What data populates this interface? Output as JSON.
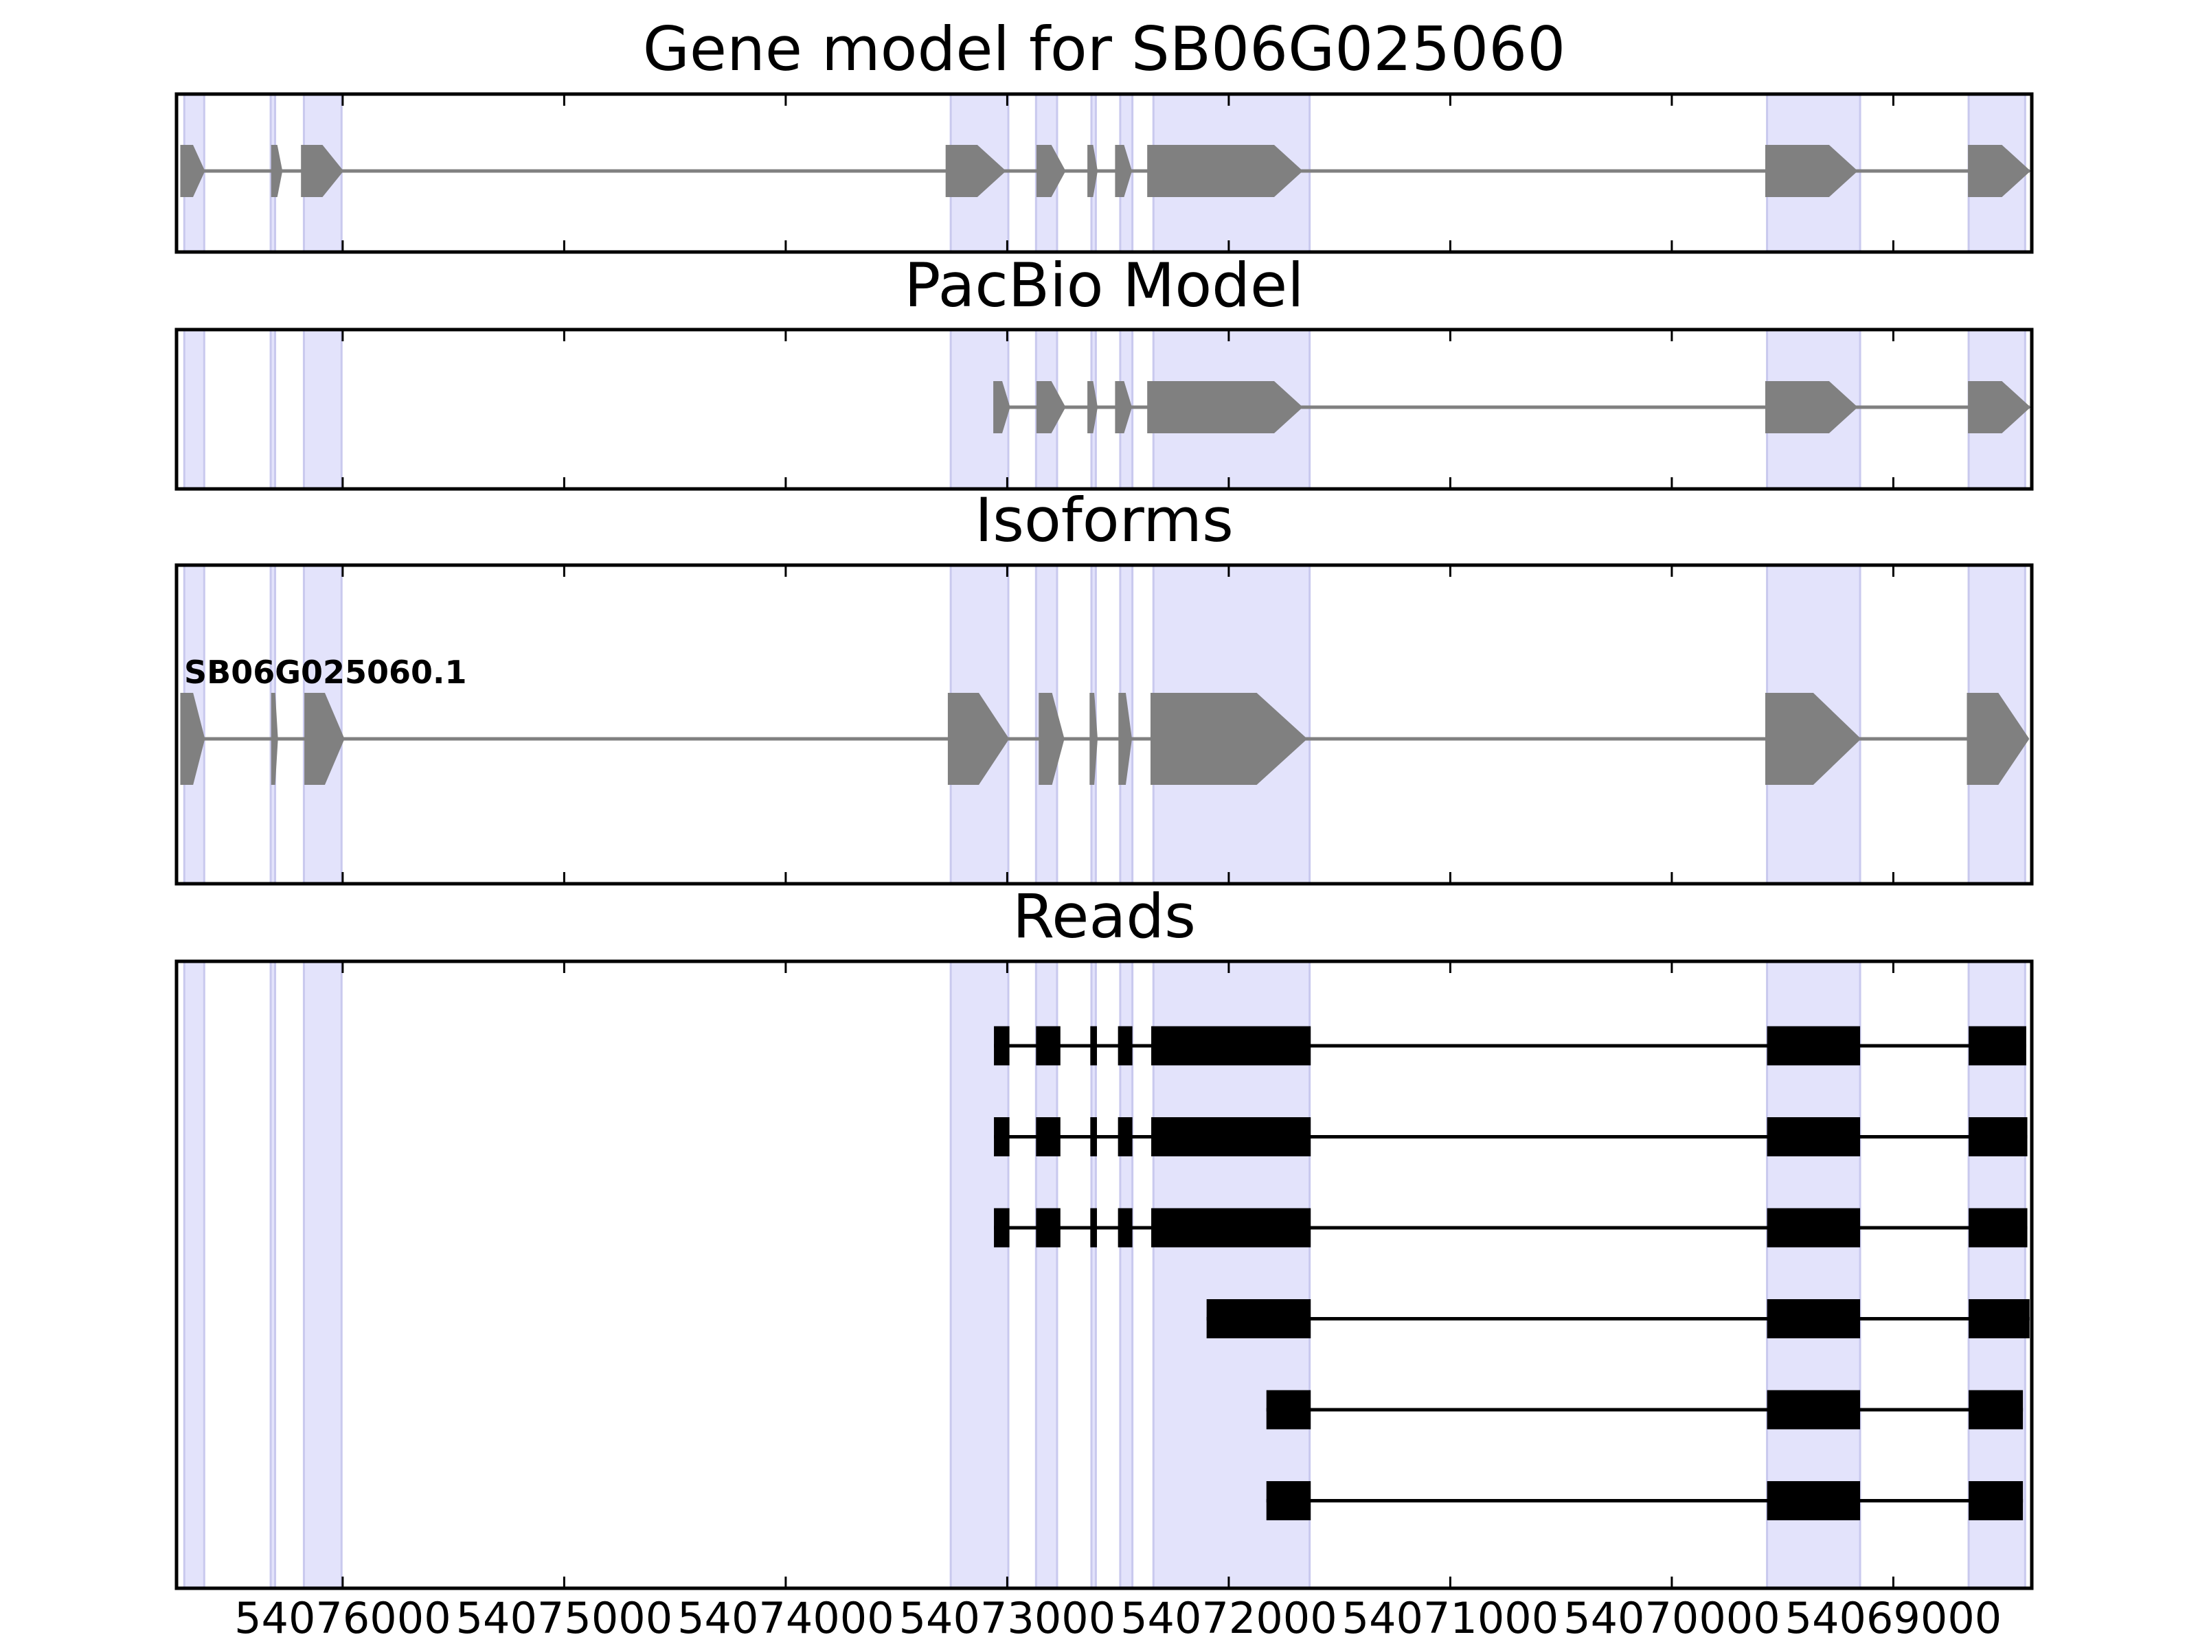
{
  "chart_data": {
    "type": "gene_track",
    "x_range": [
      54076750,
      54068375
    ],
    "x_ticks": [
      54076000,
      54075000,
      54074000,
      54073000,
      54072000,
      54071000,
      54070000,
      54069000
    ],
    "x_tick_labels": [
      "54076000",
      "54075000",
      "54074000",
      "54073000",
      "54072000",
      "54071000",
      "54070000",
      "54069000"
    ],
    "strand": "-",
    "colors": {
      "gene": "#808080",
      "read": "#000000",
      "highlight": "#e3e3fb",
      "frame": "#000000"
    },
    "highlight_regions": [
      [
        54076715,
        54076625
      ],
      [
        54076325,
        54076305
      ],
      [
        54076175,
        54076005
      ],
      [
        54073255,
        54072995
      ],
      [
        54072870,
        54072775
      ],
      [
        54072620,
        54072600
      ],
      [
        54072490,
        54072435
      ],
      [
        54072340,
        54071635
      ],
      [
        54069570,
        54069150
      ],
      [
        54068660,
        54068405
      ]
    ],
    "panels": [
      {
        "title": "Gene model for SB06G025060",
        "track_label": "",
        "exons": [
          [
            54076730,
            54076625
          ],
          [
            54076320,
            54076275
          ],
          [
            54076185,
            54076000
          ],
          [
            54073275,
            54073010
          ],
          [
            54072865,
            54072740
          ],
          [
            54072635,
            54072595
          ],
          [
            54072510,
            54072440
          ],
          [
            54072365,
            54071670
          ],
          [
            54069575,
            54069165
          ],
          [
            54068660,
            54068385
          ]
        ]
      },
      {
        "title": "PacBio Model",
        "track_label": "",
        "exons": [
          [
            54073060,
            54072990
          ],
          [
            54072865,
            54072740
          ],
          [
            54072635,
            54072595
          ],
          [
            54072510,
            54072440
          ],
          [
            54072365,
            54071670
          ],
          [
            54069575,
            54069165
          ],
          [
            54068660,
            54068385
          ]
        ]
      },
      {
        "title": "Isoforms",
        "track_label": "SB06G025060.1",
        "exons": [
          [
            54076730,
            54076625
          ],
          [
            54076320,
            54076295
          ],
          [
            54076170,
            54075995
          ],
          [
            54073265,
            54072995
          ],
          [
            54072855,
            54072745
          ],
          [
            54072625,
            54072595
          ],
          [
            54072495,
            54072440
          ],
          [
            54072350,
            54071650
          ],
          [
            54069575,
            54069150
          ],
          [
            54068665,
            54068390
          ]
        ]
      }
    ],
    "reads": {
      "title": "Reads",
      "rows": [
        [
          [
            54073060,
            54072990
          ],
          [
            54072870,
            54072760
          ],
          [
            54072625,
            54072595
          ],
          [
            54072500,
            54072435
          ],
          [
            54072350,
            54071630
          ],
          [
            54069570,
            54069150
          ],
          [
            54068660,
            54068400
          ]
        ],
        [
          [
            54073060,
            54072990
          ],
          [
            54072870,
            54072760
          ],
          [
            54072625,
            54072595
          ],
          [
            54072500,
            54072435
          ],
          [
            54072350,
            54071630
          ],
          [
            54069570,
            54069150
          ],
          [
            54068660,
            54068395
          ]
        ],
        [
          [
            54073060,
            54072990
          ],
          [
            54072870,
            54072760
          ],
          [
            54072625,
            54072595
          ],
          [
            54072500,
            54072435
          ],
          [
            54072350,
            54071630
          ],
          [
            54069570,
            54069150
          ],
          [
            54068660,
            54068395
          ]
        ],
        [
          [
            54072100,
            54071630
          ],
          [
            54069570,
            54069150
          ],
          [
            54068660,
            54068385
          ]
        ],
        [
          [
            54071830,
            54071630
          ],
          [
            54069570,
            54069150
          ],
          [
            54068660,
            54068415
          ]
        ],
        [
          [
            54071830,
            54071630
          ],
          [
            54069570,
            54069150
          ],
          [
            54068660,
            54068415
          ]
        ]
      ]
    }
  }
}
